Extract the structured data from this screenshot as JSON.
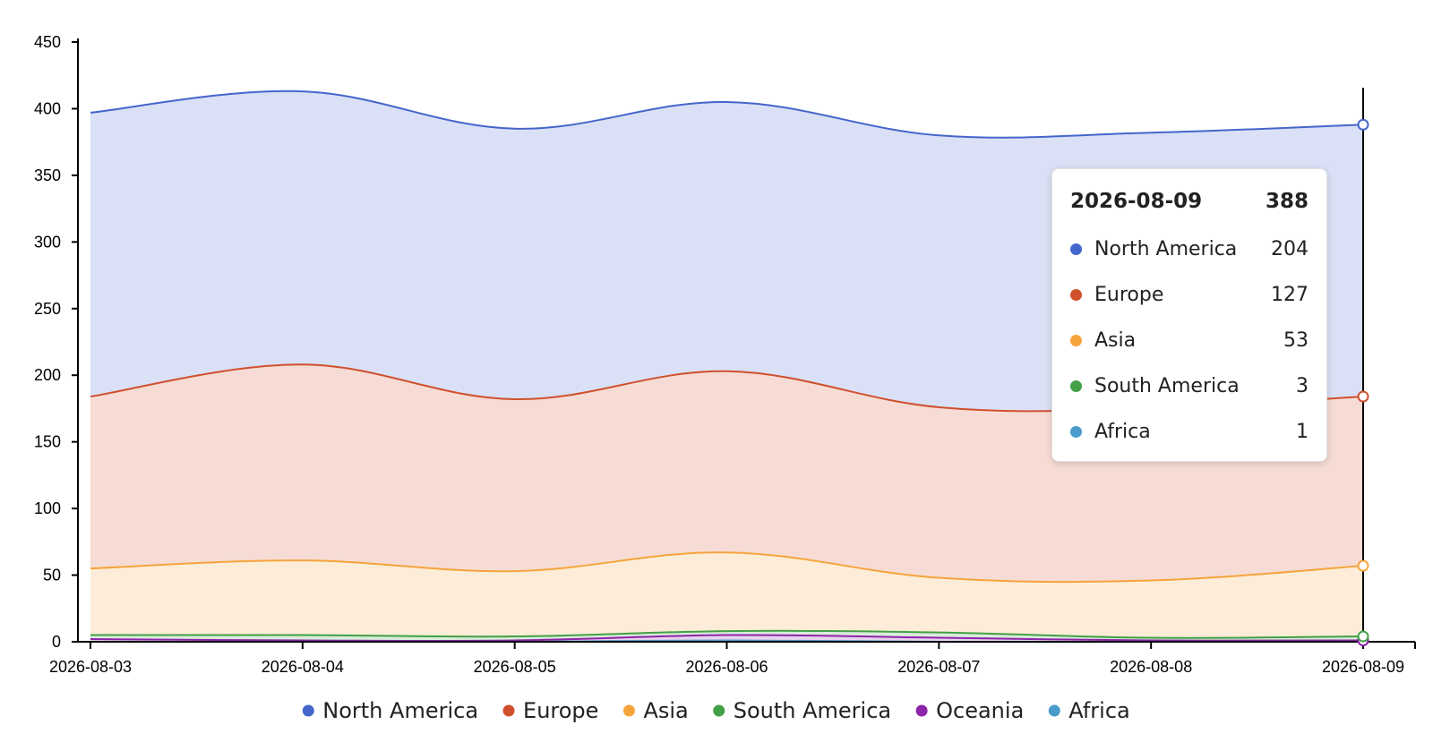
{
  "chart_data": {
    "type": "area",
    "stacked": true,
    "x": [
      "2026-08-03",
      "2026-08-04",
      "2026-08-05",
      "2026-08-06",
      "2026-08-07",
      "2026-08-08",
      "2026-08-09"
    ],
    "ylim": [
      0,
      450
    ],
    "yticks": [
      0,
      50,
      100,
      150,
      200,
      250,
      300,
      350,
      400,
      450
    ],
    "grid": false,
    "legend_position": "bottom",
    "series": [
      {
        "name": "Africa",
        "color": "#4a9ccc",
        "values": [
          0,
          0,
          0,
          1,
          0,
          0,
          1
        ]
      },
      {
        "name": "Oceania",
        "color": "#8e24aa",
        "values": [
          2,
          1,
          1,
          4,
          3,
          1,
          0
        ]
      },
      {
        "name": "South America",
        "color": "#43a047",
        "values": [
          3,
          4,
          3,
          3,
          4,
          2,
          3
        ]
      },
      {
        "name": "Asia",
        "color": "#f5a43c",
        "values": [
          50,
          56,
          49,
          59,
          41,
          43,
          53
        ]
      },
      {
        "name": "Europe",
        "color": "#d0502e",
        "values": [
          129,
          147,
          129,
          136,
          128,
          129,
          127
        ]
      },
      {
        "name": "North America",
        "color": "#4466cc",
        "values": [
          213,
          205,
          203,
          202,
          204,
          207,
          204
        ]
      }
    ],
    "legend": [
      "North America",
      "Europe",
      "Asia",
      "South America",
      "Oceania",
      "Africa"
    ],
    "hover_index": 6
  },
  "tooltip": {
    "date": "2026-08-09",
    "total": "388",
    "rows": [
      {
        "name": "North America",
        "value": "204",
        "color": "#4466cc"
      },
      {
        "name": "Europe",
        "value": "127",
        "color": "#d0502e"
      },
      {
        "name": "Asia",
        "value": "53",
        "color": "#f5a43c"
      },
      {
        "name": "South America",
        "value": "3",
        "color": "#43a047"
      },
      {
        "name": "Africa",
        "value": "1",
        "color": "#4a9ccc"
      }
    ]
  }
}
